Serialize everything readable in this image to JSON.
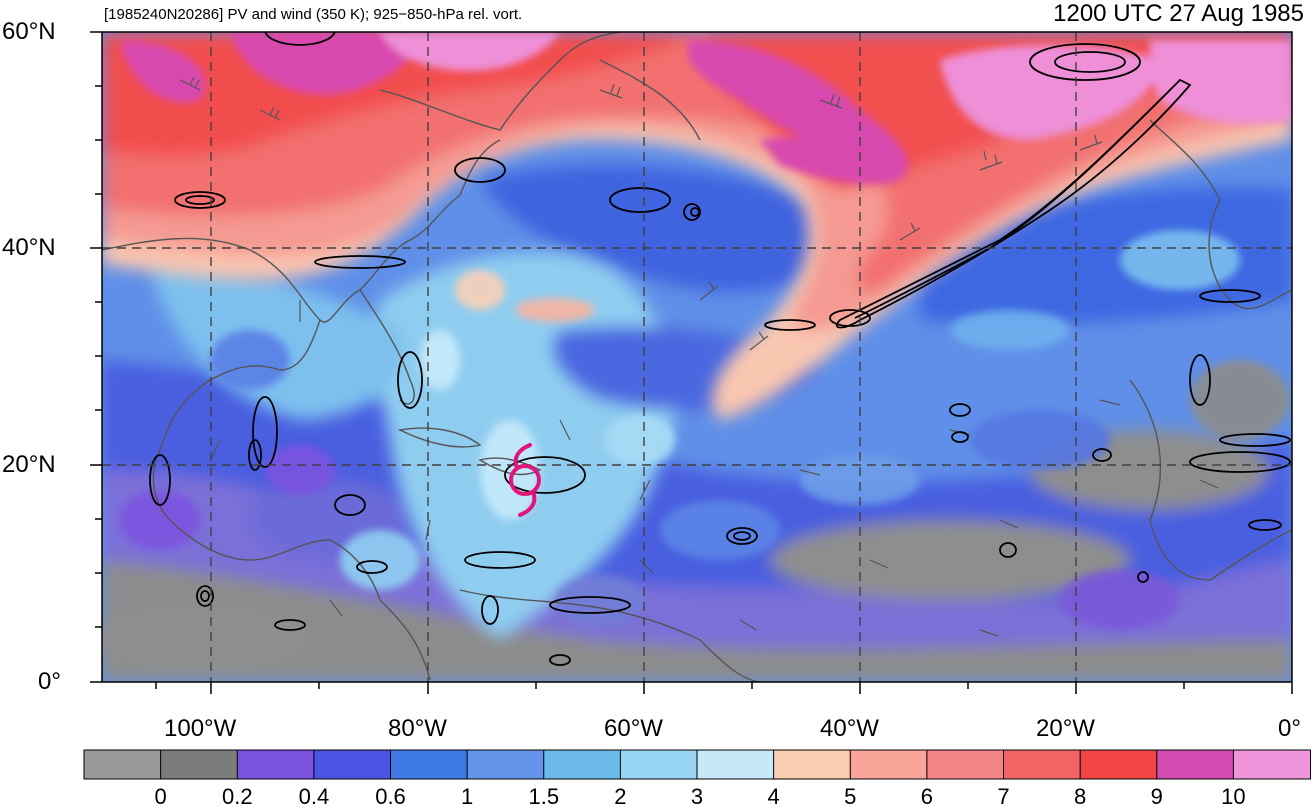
{
  "title": {
    "left": "[1985240N20286] PV and wind (350 K); 925−850-hPa rel. vort.",
    "right": "1200 UTC 27 Aug 1985"
  },
  "axes": {
    "lat_labels": [
      "60°N",
      "40°N",
      "20°N",
      "0°"
    ],
    "lon_labels": [
      "100°W",
      "80°W",
      "60°W",
      "40°W",
      "20°W",
      "0°"
    ]
  },
  "colorbar": {
    "labels": [
      "0",
      "0.2",
      "0.4",
      "0.6",
      "1",
      "1.5",
      "2",
      "3",
      "4",
      "5",
      "6",
      "7",
      "8",
      "9",
      "10"
    ],
    "colors": [
      "#9a9a9a",
      "#7c7c7c",
      "#7b52e0",
      "#4a55e3",
      "#3d7ae6",
      "#6595ea",
      "#6cbbe8",
      "#98d4f3",
      "#c6e9fa",
      "#f9cfb4",
      "#f9a59a",
      "#f58585",
      "#f36466",
      "#f24545",
      "#d44bb2",
      "#ef95dc"
    ]
  },
  "map_features": {
    "storm_marker": "tropical-storm-symbol",
    "storm_color": "#e0147a",
    "grid_style": "dashed"
  }
}
